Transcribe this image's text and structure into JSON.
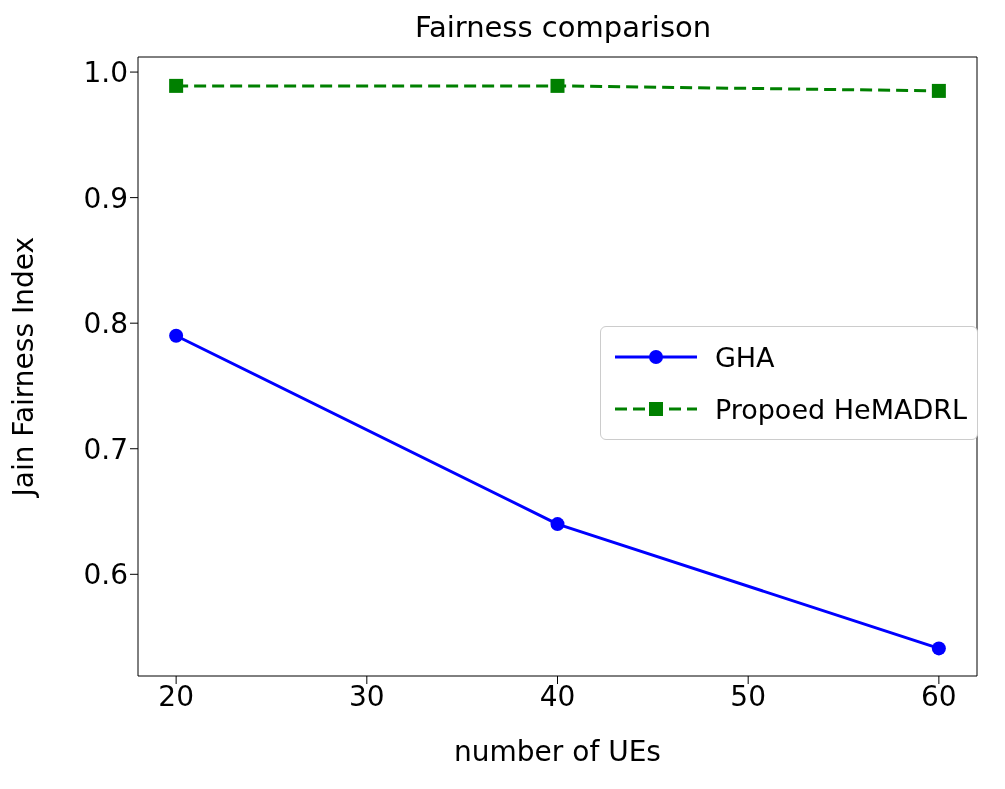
{
  "chart_data": {
    "type": "line",
    "title": "Fairness comparison",
    "xlabel": "number of UEs",
    "ylabel": "Jain Fairness Index",
    "x": [
      20,
      40,
      60
    ],
    "series": [
      {
        "name": "GHA",
        "color": "#0000ff",
        "values": [
          0.79,
          0.64,
          0.541
        ],
        "marker": "circle",
        "line_style": "solid"
      },
      {
        "name": "Propoed HeMADRL",
        "color": "#008000",
        "values": [
          0.989,
          0.989,
          0.985
        ],
        "marker": "square",
        "line_style": "dashed"
      }
    ],
    "xlim": [
      18,
      62
    ],
    "xticks": [
      20,
      30,
      40,
      50,
      60
    ],
    "ylim": [
      0.519,
      1.012
    ],
    "yticks": [
      0.6,
      0.7,
      0.8,
      0.9,
      {
        "value": 1,
        "label": "1.0"
      }
    ],
    "legend": "center right"
  }
}
